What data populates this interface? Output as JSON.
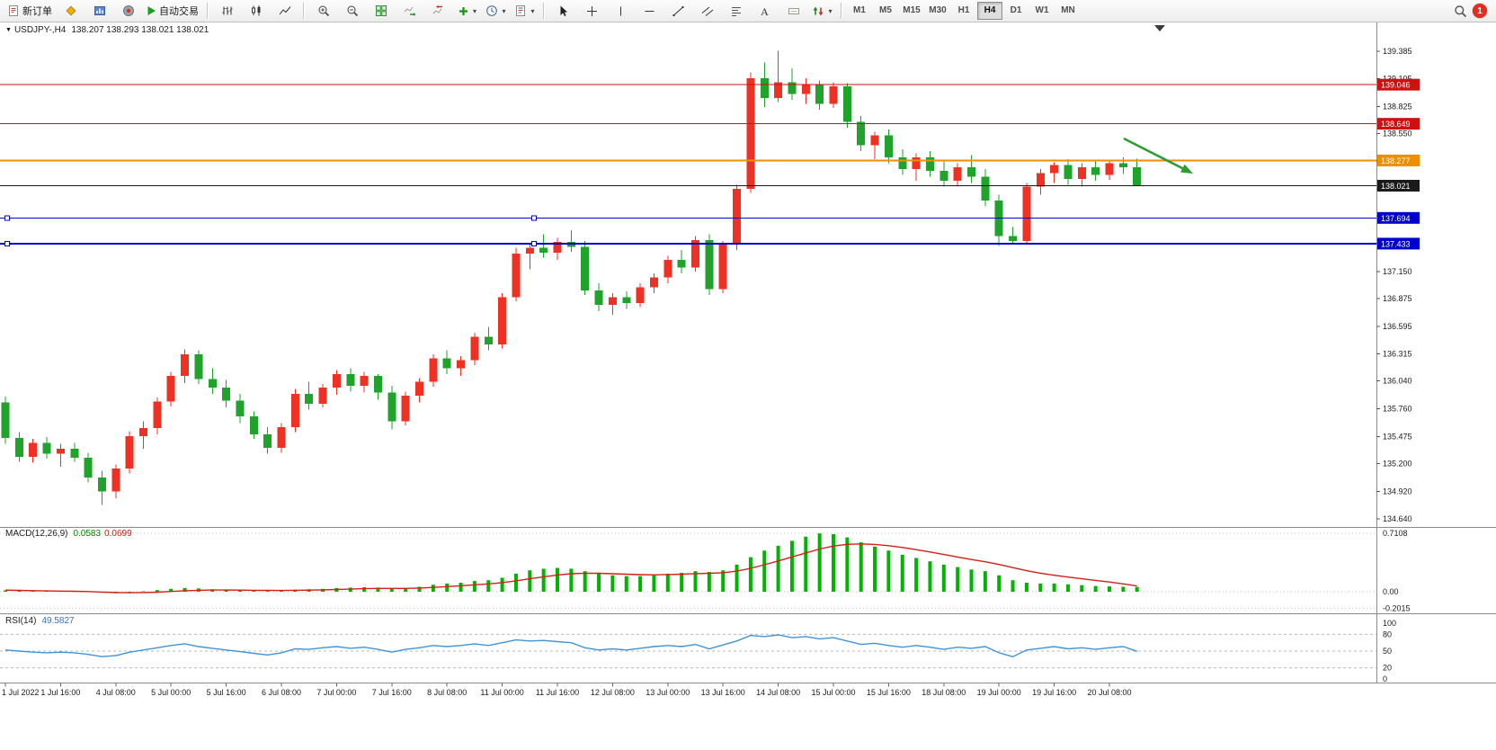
{
  "toolbar": {
    "new_order_label": "新订单",
    "auto_trading_label": "自动交易",
    "timeframes": [
      "M1",
      "M5",
      "M15",
      "M30",
      "H1",
      "H4",
      "D1",
      "W1",
      "MN"
    ],
    "active_timeframe": "H4",
    "notification_count": "1",
    "icons": [
      "new-order-icon",
      "metaeditor-icon",
      "profiles-icon",
      "community-icon",
      "auto-trading-icon",
      "bar-chart-icon",
      "candlestick-chart-icon",
      "line-chart-icon",
      "zoom-in-icon",
      "zoom-out-icon",
      "tile-windows-icon",
      "auto-scroll-icon",
      "chart-shift-icon",
      "indicators-add-icon",
      "periods-icon",
      "templates-icon",
      "cursor-icon",
      "crosshair-icon",
      "vertical-line-icon",
      "horizontal-line-icon",
      "trendline-icon",
      "equidistant-channel-icon",
      "fibonacci-icon",
      "text-icon",
      "text-label-icon",
      "arrows-icon",
      "search-icon",
      "notification-badge"
    ]
  },
  "chart": {
    "title": "USDJPY-,H4",
    "ohlc": "138.207 138.293 138.021 138.021",
    "levels": [
      {
        "price": "139.046",
        "value": 139.046,
        "color": "#cc1111",
        "width": 1,
        "handles": false
      },
      {
        "price": "138.649",
        "value": 138.649,
        "color": "#cc1111",
        "width": 1,
        "handles": false
      },
      {
        "price": "138.277",
        "value": 138.277,
        "color": "#ef8e00",
        "width": 2,
        "handles": false
      },
      {
        "price": "138.021",
        "value": 138.021,
        "color": "#1a1a1a",
        "width": 1,
        "handles": false
      },
      {
        "price": "137.694",
        "value": 137.694,
        "color": "#0000cc",
        "width": 1,
        "handles": true
      },
      {
        "price": "137.433",
        "value": 137.433,
        "color": "#0000cc",
        "width": 2,
        "handles": true
      }
    ],
    "annotations": [
      {
        "type": "arrow",
        "direction": "down-right",
        "color": "#2e9b35"
      }
    ]
  },
  "chart_data": {
    "type": "candlestick",
    "symbol": "USDJPY-",
    "period": "H4",
    "colors": {
      "bull": "#ef3124",
      "bear": "#1fa32b"
    },
    "y_ticks": [
      "139.385",
      "139.105",
      "138.825",
      "138.550",
      "138.270",
      "137.990",
      "137.715",
      "137.435",
      "137.150",
      "136.875",
      "136.595",
      "136.315",
      "136.040",
      "135.760",
      "135.475",
      "135.200",
      "134.920",
      "134.640"
    ],
    "x_labels": [
      "1 Jul 2022",
      "1 Jul 16:00",
      "4 Jul 08:00",
      "5 Jul 00:00",
      "5 Jul 16:00",
      "6 Jul 08:00",
      "7 Jul 00:00",
      "7 Jul 16:00",
      "8 Jul 08:00",
      "11 Jul 00:00",
      "11 Jul 16:00",
      "12 Jul 08:00",
      "13 Jul 00:00",
      "13 Jul 16:00",
      "14 Jul 08:00",
      "15 Jul 00:00",
      "15 Jul 16:00",
      "18 Jul 08:00",
      "19 Jul 00:00",
      "19 Jul 16:00",
      "20 Jul 08:00"
    ],
    "candles": [
      [
        135.82,
        135.88,
        135.4,
        135.46
      ],
      [
        135.46,
        135.52,
        135.22,
        135.27
      ],
      [
        135.27,
        135.45,
        135.21,
        135.41
      ],
      [
        135.41,
        135.47,
        135.25,
        135.3
      ],
      [
        135.3,
        135.4,
        135.17,
        135.35
      ],
      [
        135.35,
        135.41,
        135.22,
        135.26
      ],
      [
        135.26,
        135.31,
        135.01,
        135.06
      ],
      [
        135.06,
        135.13,
        134.78,
        134.92
      ],
      [
        134.92,
        135.19,
        134.85,
        135.15
      ],
      [
        135.15,
        135.53,
        135.1,
        135.48
      ],
      [
        135.48,
        135.63,
        135.35,
        135.56
      ],
      [
        135.56,
        135.87,
        135.5,
        135.83
      ],
      [
        135.83,
        136.13,
        135.78,
        136.09
      ],
      [
        136.09,
        136.36,
        136.02,
        136.31
      ],
      [
        136.31,
        136.35,
        136.01,
        136.06
      ],
      [
        136.06,
        136.17,
        135.91,
        135.97
      ],
      [
        135.97,
        136.05,
        135.77,
        135.84
      ],
      [
        135.84,
        135.91,
        135.61,
        135.68
      ],
      [
        135.68,
        135.73,
        135.45,
        135.5
      ],
      [
        135.5,
        135.57,
        135.3,
        135.36
      ],
      [
        135.36,
        135.61,
        135.31,
        135.57
      ],
      [
        135.57,
        135.96,
        135.52,
        135.91
      ],
      [
        135.91,
        136.03,
        135.75,
        135.81
      ],
      [
        135.81,
        136.01,
        135.77,
        135.97
      ],
      [
        135.97,
        136.15,
        135.9,
        136.11
      ],
      [
        136.11,
        136.17,
        135.93,
        135.99
      ],
      [
        135.99,
        136.13,
        135.92,
        136.09
      ],
      [
        136.09,
        136.11,
        135.85,
        135.92
      ],
      [
        135.92,
        135.99,
        135.55,
        135.63
      ],
      [
        135.63,
        135.93,
        135.59,
        135.89
      ],
      [
        135.89,
        136.07,
        135.82,
        136.03
      ],
      [
        136.03,
        136.31,
        135.98,
        136.27
      ],
      [
        136.27,
        136.35,
        136.11,
        136.17
      ],
      [
        136.17,
        136.29,
        136.09,
        136.25
      ],
      [
        136.25,
        136.53,
        136.2,
        136.49
      ],
      [
        136.49,
        136.59,
        136.35,
        136.41
      ],
      [
        136.41,
        136.93,
        136.37,
        136.89
      ],
      [
        136.89,
        137.39,
        136.85,
        137.33
      ],
      [
        137.33,
        137.43,
        137.17,
        137.39
      ],
      [
        137.39,
        137.53,
        137.29,
        137.34
      ],
      [
        137.34,
        137.49,
        137.27,
        137.45
      ],
      [
        137.45,
        137.57,
        137.35,
        137.4
      ],
      [
        137.4,
        137.46,
        136.91,
        136.96
      ],
      [
        136.96,
        137.03,
        136.75,
        136.81
      ],
      [
        136.81,
        136.93,
        136.71,
        136.89
      ],
      [
        136.89,
        136.95,
        136.77,
        136.83
      ],
      [
        136.83,
        137.03,
        136.79,
        136.99
      ],
      [
        136.99,
        137.13,
        136.93,
        137.09
      ],
      [
        137.09,
        137.31,
        137.03,
        137.27
      ],
      [
        137.27,
        137.37,
        137.13,
        137.19
      ],
      [
        137.19,
        137.51,
        137.15,
        137.47
      ],
      [
        137.47,
        137.53,
        136.91,
        136.97
      ],
      [
        136.97,
        137.46,
        136.93,
        137.43
      ],
      [
        137.43,
        138.03,
        137.37,
        137.99
      ],
      [
        137.99,
        139.17,
        137.95,
        139.11
      ],
      [
        139.11,
        139.27,
        138.82,
        138.91
      ],
      [
        138.91,
        139.39,
        138.87,
        139.07
      ],
      [
        139.07,
        139.21,
        138.89,
        138.95
      ],
      [
        138.95,
        139.11,
        138.85,
        139.05
      ],
      [
        139.05,
        139.09,
        138.79,
        138.85
      ],
      [
        138.85,
        139.07,
        138.81,
        139.03
      ],
      [
        139.03,
        139.06,
        138.61,
        138.67
      ],
      [
        138.67,
        138.73,
        138.37,
        138.43
      ],
      [
        138.43,
        138.57,
        138.29,
        138.53
      ],
      [
        138.53,
        138.59,
        138.25,
        138.31
      ],
      [
        138.31,
        138.39,
        138.13,
        138.19
      ],
      [
        138.19,
        138.35,
        138.07,
        138.31
      ],
      [
        138.31,
        138.37,
        138.11,
        138.17
      ],
      [
        138.17,
        138.27,
        138.01,
        138.07
      ],
      [
        138.07,
        138.25,
        138.01,
        138.21
      ],
      [
        138.21,
        138.33,
        138.05,
        138.11
      ],
      [
        138.11,
        138.19,
        137.81,
        137.87
      ],
      [
        137.87,
        137.93,
        137.41,
        137.51
      ],
      [
        137.51,
        137.6,
        137.425,
        137.46
      ],
      [
        137.46,
        138.05,
        137.43,
        138.01
      ],
      [
        138.01,
        138.19,
        137.93,
        138.15
      ],
      [
        138.15,
        138.26,
        138.05,
        138.23
      ],
      [
        138.23,
        138.29,
        138.03,
        138.09
      ],
      [
        138.09,
        138.25,
        138.01,
        138.21
      ],
      [
        138.21,
        138.27,
        138.07,
        138.13
      ],
      [
        138.13,
        138.28,
        138.08,
        138.25
      ],
      [
        138.25,
        138.31,
        138.14,
        138.207
      ],
      [
        138.207,
        138.293,
        138.021,
        138.021
      ]
    ],
    "indicators": {
      "macd": {
        "label": "MACD(12,26,9)",
        "value_main": "0.0583",
        "value_signal": "0.0699",
        "scale_labels": [
          "0.7108",
          "0.00",
          "-0.2015"
        ],
        "histogram_color": "#00b400",
        "signal_color": "#d42015",
        "histogram": [
          0.015,
          0.012,
          0.01,
          0.008,
          0.01,
          0.008,
          0.004,
          -0.012,
          -0.018,
          -0.01,
          0.005,
          0.02,
          0.035,
          0.045,
          0.04,
          0.03,
          0.022,
          0.015,
          0.01,
          0.008,
          0.012,
          0.025,
          0.03,
          0.035,
          0.045,
          0.05,
          0.055,
          0.05,
          0.04,
          0.045,
          0.06,
          0.085,
          0.1,
          0.11,
          0.13,
          0.14,
          0.17,
          0.22,
          0.26,
          0.28,
          0.29,
          0.28,
          0.25,
          0.22,
          0.2,
          0.19,
          0.19,
          0.2,
          0.22,
          0.23,
          0.25,
          0.24,
          0.26,
          0.33,
          0.42,
          0.5,
          0.56,
          0.62,
          0.67,
          0.71,
          0.7,
          0.66,
          0.6,
          0.55,
          0.5,
          0.45,
          0.41,
          0.37,
          0.33,
          0.3,
          0.27,
          0.25,
          0.2,
          0.14,
          0.11,
          0.1,
          0.1,
          0.09,
          0.08,
          0.07,
          0.065,
          0.06,
          0.0583
        ],
        "signal": [
          0.02,
          0.016,
          0.013,
          0.01,
          0.008,
          0.006,
          0.002,
          -0.004,
          -0.01,
          -0.012,
          -0.01,
          -0.005,
          0.003,
          0.012,
          0.018,
          0.021,
          0.021,
          0.02,
          0.018,
          0.016,
          0.015,
          0.017,
          0.02,
          0.023,
          0.027,
          0.032,
          0.037,
          0.04,
          0.04,
          0.041,
          0.045,
          0.053,
          0.062,
          0.072,
          0.084,
          0.095,
          0.11,
          0.132,
          0.158,
          0.182,
          0.204,
          0.219,
          0.225,
          0.224,
          0.219,
          0.213,
          0.208,
          0.206,
          0.209,
          0.213,
          0.22,
          0.224,
          0.231,
          0.251,
          0.285,
          0.328,
          0.374,
          0.423,
          0.472,
          0.52,
          0.556,
          0.577,
          0.582,
          0.575,
          0.56,
          0.538,
          0.512,
          0.484,
          0.453,
          0.422,
          0.392,
          0.364,
          0.331,
          0.293,
          0.256,
          0.225,
          0.2,
          0.178,
          0.158,
          0.138,
          0.118,
          0.095,
          0.0699
        ]
      },
      "rsi": {
        "label": "RSI(14)",
        "value": "49.5827",
        "line_color": "#3f94d8",
        "scale_labels": [
          "100",
          "80",
          "50",
          "20",
          "0"
        ],
        "dashed_levels": [
          80,
          50,
          20
        ],
        "series": [
          52,
          50,
          48,
          47,
          48,
          47,
          44,
          40,
          42,
          48,
          52,
          56,
          60,
          63,
          58,
          55,
          52,
          49,
          46,
          43,
          47,
          54,
          53,
          56,
          58,
          55,
          57,
          53,
          48,
          53,
          56,
          60,
          58,
          60,
          63,
          60,
          65,
          70,
          68,
          69,
          67,
          65,
          56,
          52,
          54,
          52,
          55,
          58,
          60,
          58,
          62,
          54,
          61,
          68,
          78,
          76,
          79,
          74,
          76,
          72,
          74,
          68,
          62,
          64,
          60,
          57,
          60,
          57,
          53,
          57,
          55,
          58,
          47,
          40,
          52,
          55,
          58,
          54,
          56,
          53,
          56,
          58,
          49.58
        ]
      }
    }
  }
}
